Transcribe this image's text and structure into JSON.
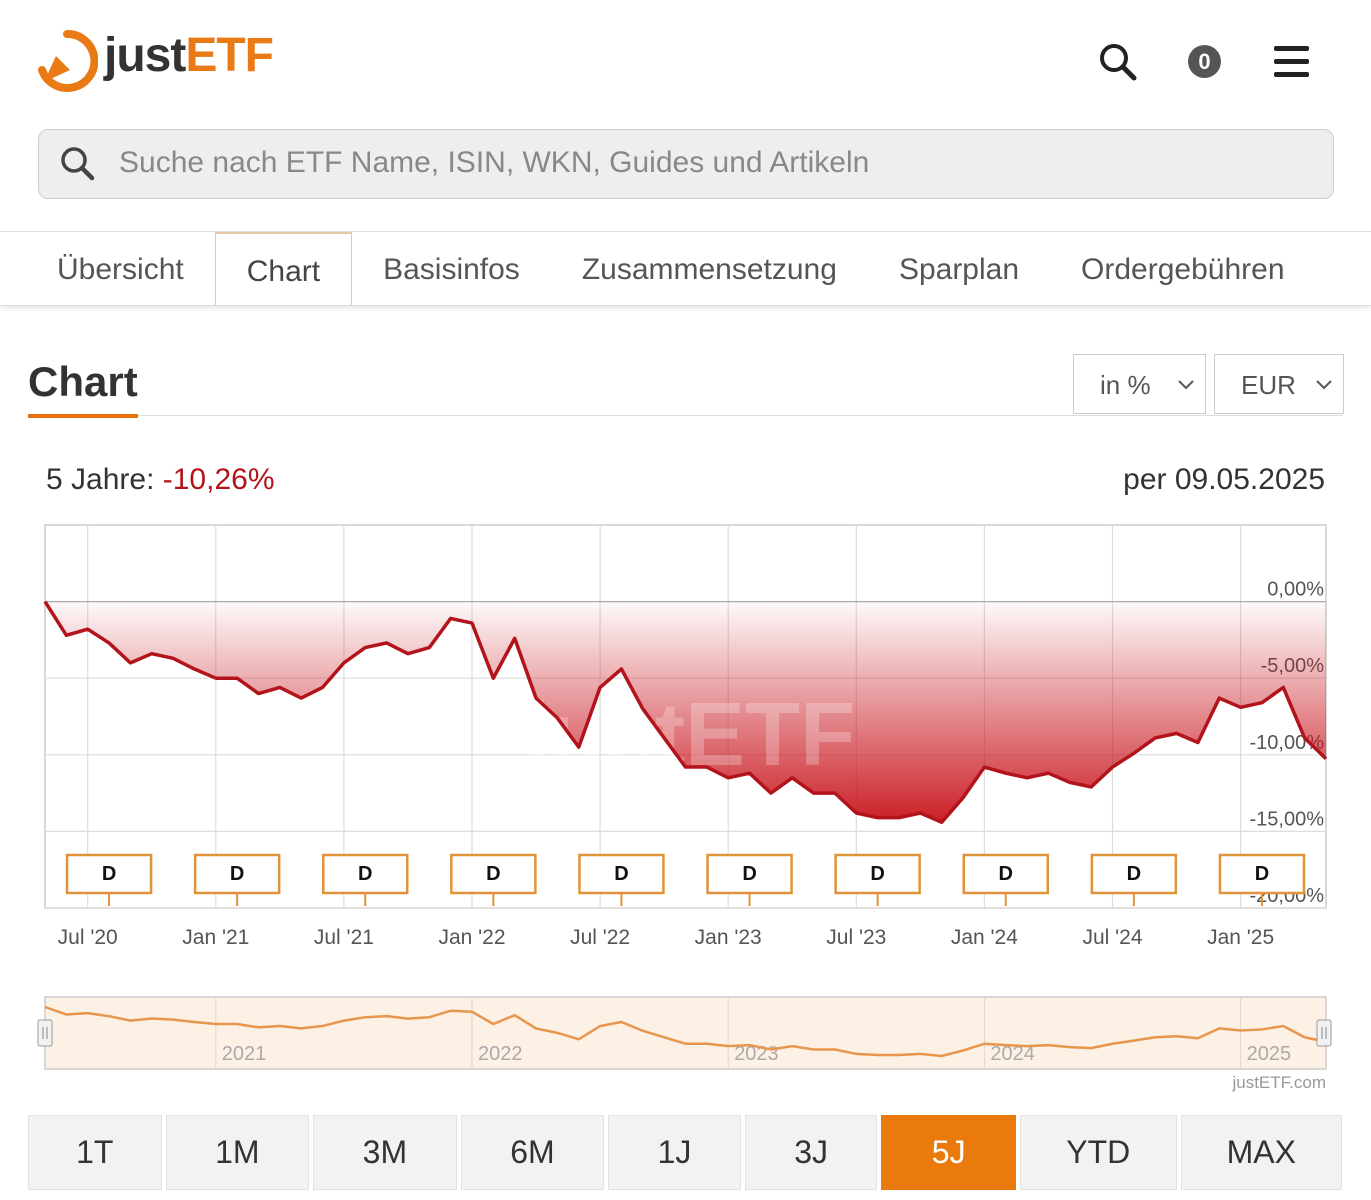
{
  "header": {
    "logo_just": "just",
    "logo_etf": "ETF",
    "cart_count": "0"
  },
  "search": {
    "placeholder": "Suche nach ETF Name, ISIN, WKN, Guides und Artikeln"
  },
  "tabs": {
    "items": [
      "Übersicht",
      "Chart",
      "Basisinfos",
      "Zusammensetzung",
      "Sparplan",
      "Ordergebühren"
    ],
    "active": 1
  },
  "section": {
    "title": "Chart",
    "unit_select": "in %",
    "currency_select": "EUR"
  },
  "summary": {
    "label": "5 Jahre:",
    "value": "-10,26%",
    "as_of": "per 09.05.2025"
  },
  "chart_data": {
    "type": "line",
    "color": "#b3141b",
    "x": [
      "2020-05",
      "2020-06",
      "2020-07",
      "2020-08",
      "2020-09",
      "2020-10",
      "2020-11",
      "2020-12",
      "2021-01",
      "2021-02",
      "2021-03",
      "2021-04",
      "2021-05",
      "2021-06",
      "2021-07",
      "2021-08",
      "2021-09",
      "2021-10",
      "2021-11",
      "2021-12",
      "2022-01",
      "2022-02",
      "2022-03",
      "2022-04",
      "2022-05",
      "2022-06",
      "2022-07",
      "2022-08",
      "2022-09",
      "2022-10",
      "2022-11",
      "2022-12",
      "2023-01",
      "2023-02",
      "2023-03",
      "2023-04",
      "2023-05",
      "2023-06",
      "2023-07",
      "2023-08",
      "2023-09",
      "2023-10",
      "2023-11",
      "2023-12",
      "2024-01",
      "2024-02",
      "2024-03",
      "2024-04",
      "2024-05",
      "2024-06",
      "2024-07",
      "2024-08",
      "2024-09",
      "2024-10",
      "2024-11",
      "2024-12",
      "2025-01",
      "2025-02",
      "2025-03",
      "2025-04",
      "2025-05"
    ],
    "values": [
      0,
      -2.2,
      -1.8,
      -2.7,
      -4.0,
      -3.4,
      -3.7,
      -4.4,
      -5.0,
      -5.0,
      -6.0,
      -5.6,
      -6.3,
      -5.6,
      -4.0,
      -3.0,
      -2.7,
      -3.4,
      -3.0,
      -1.1,
      -1.4,
      -5.0,
      -2.4,
      -6.3,
      -7.6,
      -9.5,
      -5.6,
      -4.4,
      -7.0,
      -8.9,
      -10.8,
      -10.8,
      -11.5,
      -11.2,
      -12.5,
      -11.5,
      -12.5,
      -12.5,
      -13.8,
      -14.1,
      -14.1,
      -13.8,
      -14.4,
      -12.8,
      -10.8,
      -11.2,
      -11.5,
      -11.2,
      -11.8,
      -12.1,
      -10.8,
      -9.9,
      -8.9,
      -8.6,
      -9.2,
      -6.3,
      -6.9,
      -6.6,
      -5.6,
      -8.9,
      -10.26
    ],
    "xlim": [
      "2020-05",
      "2025-05"
    ],
    "xticks": [
      {
        "value": "2020-07",
        "label": "Jul '20"
      },
      {
        "value": "2021-01",
        "label": "Jan '21"
      },
      {
        "value": "2021-07",
        "label": "Jul '21"
      },
      {
        "value": "2022-01",
        "label": "Jan '22"
      },
      {
        "value": "2022-07",
        "label": "Jul '22"
      },
      {
        "value": "2023-01",
        "label": "Jan '23"
      },
      {
        "value": "2023-07",
        "label": "Jul '23"
      },
      {
        "value": "2024-01",
        "label": "Jan '24"
      },
      {
        "value": "2024-07",
        "label": "Jul '24"
      },
      {
        "value": "2025-01",
        "label": "Jan '25"
      }
    ],
    "ylim": [
      -20,
      5
    ],
    "yticks": [
      {
        "value": 0,
        "label": "0,00%"
      },
      {
        "value": -5,
        "label": "-5,00%"
      },
      {
        "value": -10,
        "label": "-10,00%"
      },
      {
        "value": -15,
        "label": "-15,00%"
      },
      {
        "value": -20,
        "label": "-20,00%"
      }
    ],
    "grid": true,
    "dividends": [
      {
        "x": "2020-08",
        "label": "D"
      },
      {
        "x": "2021-02",
        "label": "D"
      },
      {
        "x": "2021-08",
        "label": "D"
      },
      {
        "x": "2022-02",
        "label": "D"
      },
      {
        "x": "2022-08",
        "label": "D"
      },
      {
        "x": "2023-02",
        "label": "D"
      },
      {
        "x": "2023-08",
        "label": "D"
      },
      {
        "x": "2024-02",
        "label": "D"
      },
      {
        "x": "2024-08",
        "label": "D"
      },
      {
        "x": "2025-02",
        "label": "D"
      }
    ],
    "watermark": "justETF",
    "navigator": {
      "labels": [
        {
          "x": "2021-01",
          "label": "2021"
        },
        {
          "x": "2022-01",
          "label": "2022"
        },
        {
          "x": "2023-01",
          "label": "2023"
        },
        {
          "x": "2024-01",
          "label": "2024"
        },
        {
          "x": "2025-01",
          "label": "2025"
        }
      ],
      "color": "#e8964e"
    },
    "credit": "justETF.com"
  },
  "ranges": {
    "items": [
      "1T",
      "1M",
      "3M",
      "6M",
      "1J",
      "3J",
      "5J",
      "YTD",
      "MAX"
    ],
    "active": 6
  }
}
